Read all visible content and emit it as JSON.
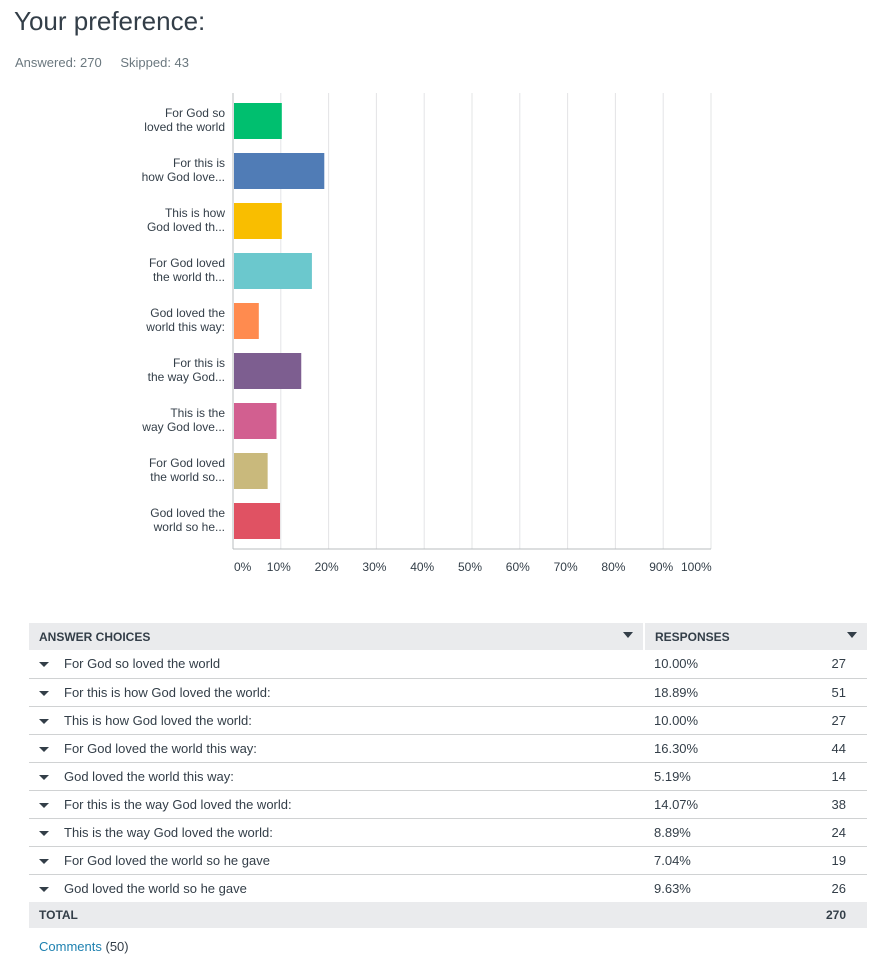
{
  "question": {
    "title": "Your preference:",
    "answered_label": "Answered: 270",
    "skipped_label": "Skipped: 43"
  },
  "chart_data": {
    "type": "bar",
    "orientation": "horizontal",
    "categories": [
      [
        "For God so",
        "loved the world"
      ],
      [
        "For this is",
        "how God love..."
      ],
      [
        "This is how",
        "God loved th..."
      ],
      [
        "For God loved",
        "the world th..."
      ],
      [
        "God loved the",
        "world this way:"
      ],
      [
        "For this is",
        "the way God..."
      ],
      [
        "This is the",
        "way God love..."
      ],
      [
        "For God loved",
        "the world so..."
      ],
      [
        "God loved the",
        "world so he..."
      ]
    ],
    "values": [
      10.0,
      18.89,
      10.0,
      16.3,
      5.19,
      14.07,
      8.89,
      7.04,
      9.63
    ],
    "colors": [
      "#00bf6f",
      "#507cb6",
      "#f9be00",
      "#6bc8cd",
      "#ff8b4f",
      "#7d5e90",
      "#d25f90",
      "#c9b97c",
      "#e05263"
    ],
    "xlim": [
      0,
      100
    ],
    "xticks": [
      "0%",
      "10%",
      "20%",
      "30%",
      "40%",
      "50%",
      "60%",
      "70%",
      "80%",
      "90%",
      "100%"
    ],
    "grid": true,
    "xlabel": "",
    "ylabel": ""
  },
  "table": {
    "header_answer": "ANSWER CHOICES",
    "header_responses": "RESPONSES",
    "rows": [
      {
        "label": "For God so loved the world",
        "pct": "10.00%",
        "count": "27"
      },
      {
        "label": "For this is how God loved the world:",
        "pct": "18.89%",
        "count": "51"
      },
      {
        "label": "This is how God loved the world:",
        "pct": "10.00%",
        "count": "27"
      },
      {
        "label": "For God loved the world this way:",
        "pct": "16.30%",
        "count": "44"
      },
      {
        "label": "God loved the world this way:",
        "pct": "5.19%",
        "count": "14"
      },
      {
        "label": "For this is the way God loved the world:",
        "pct": "14.07%",
        "count": "38"
      },
      {
        "label": "This is the way God loved the world:",
        "pct": "8.89%",
        "count": "24"
      },
      {
        "label": "For God loved the world so he gave",
        "pct": "7.04%",
        "count": "19"
      },
      {
        "label": "God loved the world so he gave",
        "pct": "9.63%",
        "count": "26"
      }
    ],
    "total_label": "TOTAL",
    "total_value": "270"
  },
  "comments": {
    "link_label": "Comments",
    "count": "(50)"
  }
}
